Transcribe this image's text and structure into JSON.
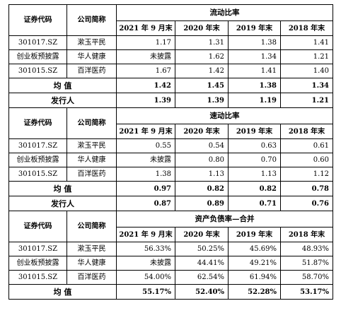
{
  "headers": {
    "code": "证券代码",
    "name": "公司简称",
    "periods": [
      "2021 年 9 月末",
      "2020 年末",
      "2019 年末",
      "2018 年末"
    ]
  },
  "sections": [
    {
      "title": "流动比率",
      "rows": [
        {
          "code": "301017.SZ",
          "name": "漱玉平民",
          "values": [
            "1.17",
            "1.31",
            "1.38",
            "1.41"
          ]
        },
        {
          "code": "创业板预披露",
          "name": "华人健康",
          "values": [
            "未披露",
            "1.62",
            "1.34",
            "1.21"
          ]
        },
        {
          "code": "301015.SZ",
          "name": "百洋医药",
          "values": [
            "1.67",
            "1.42",
            "1.41",
            "1.40"
          ]
        }
      ],
      "average": {
        "label": "均 值",
        "values": [
          "1.42",
          "1.45",
          "1.38",
          "1.34"
        ]
      },
      "issuer": {
        "label": "发行人",
        "values": [
          "1.39",
          "1.39",
          "1.19",
          "1.21"
        ]
      }
    },
    {
      "title": "速动比率",
      "rows": [
        {
          "code": "301017.SZ",
          "name": "漱玉平民",
          "values": [
            "0.55",
            "0.54",
            "0.63",
            "0.61"
          ]
        },
        {
          "code": "创业板预披露",
          "name": "华人健康",
          "values": [
            "未披露",
            "0.80",
            "0.70",
            "0.60"
          ]
        },
        {
          "code": "301015.SZ",
          "name": "百洋医药",
          "values": [
            "1.38",
            "1.13",
            "1.13",
            "1.12"
          ]
        }
      ],
      "average": {
        "label": "均 值",
        "values": [
          "0.97",
          "0.82",
          "0.82",
          "0.78"
        ]
      },
      "issuer": {
        "label": "发行人",
        "values": [
          "0.87",
          "0.89",
          "0.71",
          "0.76"
        ]
      }
    },
    {
      "title": "资产负债率—合并",
      "rows": [
        {
          "code": "301017.SZ",
          "name": "漱玉平民",
          "values": [
            "56.33%",
            "50.25%",
            "45.69%",
            "48.93%"
          ]
        },
        {
          "code": "创业板预披露",
          "name": "华人健康",
          "values": [
            "未披露",
            "44.41%",
            "49.21%",
            "51.87%"
          ]
        },
        {
          "code": "301015.SZ",
          "name": "百洋医药",
          "values": [
            "54.00%",
            "62.54%",
            "61.94%",
            "58.70%"
          ]
        }
      ],
      "average": {
        "label": "均 值",
        "values": [
          "55.17%",
          "52.40%",
          "52.28%",
          "53.17%"
        ]
      }
    }
  ]
}
